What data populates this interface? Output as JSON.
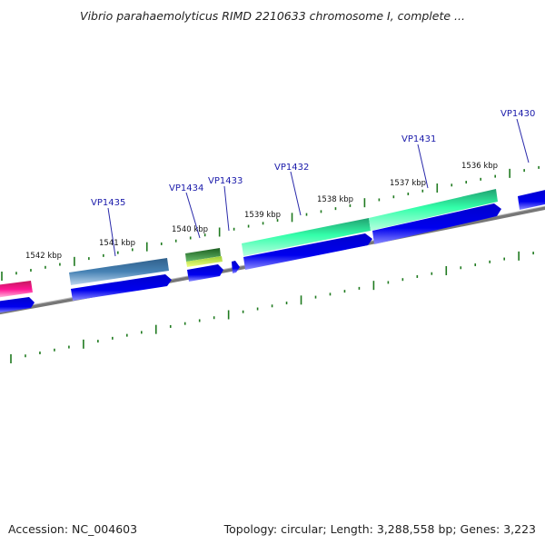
{
  "title": "Vibrio parahaemolyticus RIMD 2210633 chromosome I, complete ...",
  "footer": {
    "accession": "Accession: NC_004603",
    "summary": "Topology: circular; Length: 3,288,558 bp; Genes: 3,223"
  },
  "scale_labels": [
    "1542 kbp",
    "1541 kbp",
    "1540 kbp",
    "1539 kbp",
    "1538 kbp",
    "1537 kbp",
    "1536 kbp"
  ],
  "gene_labels": [
    "VP1435",
    "VP1434",
    "VP1433",
    "VP1432",
    "VP1431",
    "VP1430"
  ],
  "colors": {
    "backbone": "#808080",
    "cds": "#0000ee",
    "tick": "#1f7a1f",
    "label": "#1a1aaa",
    "feature_pink": "#ff1493",
    "feature_steel": "#4682b4",
    "feature_green": "#2e8b2e",
    "feature_lime": "#ccff33",
    "feature_aqua": "#33ffaa"
  }
}
